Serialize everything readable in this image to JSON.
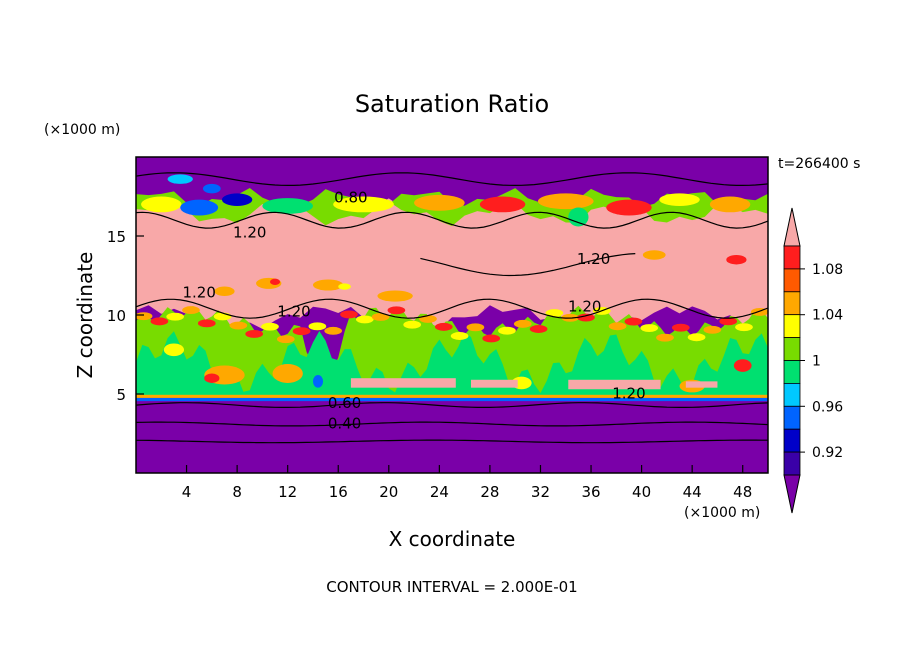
{
  "chart_data": {
    "type": "heatmap",
    "title": "Saturation Ratio",
    "xlabel": "X coordinate",
    "ylabel": "Z coordinate",
    "x_unit": "(×1000 m)",
    "y_unit": "(×1000 m)",
    "time_label": "t=266400 s",
    "footer": "CONTOUR INTERVAL = 2.000E-01",
    "xlim": [
      0,
      50
    ],
    "ylim": [
      0,
      20
    ],
    "x_ticks": [
      4,
      8,
      12,
      16,
      20,
      24,
      28,
      32,
      36,
      40,
      44,
      48
    ],
    "y_ticks": [
      5,
      10,
      15
    ],
    "grid": false,
    "legend": {
      "placement": "right",
      "type": "colorbar",
      "levels": [
        0.92,
        0.96,
        1,
        1.04,
        1.08
      ],
      "colors": [
        "#7a00a8",
        "#3a00a8",
        "#0000c8",
        "#0064ff",
        "#00c8ff",
        "#00e070",
        "#78dc00",
        "#ffff00",
        "#ffa800",
        "#ff5a00",
        "#ff1e1e",
        "#f8a8a8"
      ]
    },
    "contour_labels": [
      {
        "x": 17,
        "z": 17.4,
        "text": "0.80"
      },
      {
        "x": 9,
        "z": 15.2,
        "text": "1.20"
      },
      {
        "x": 5,
        "z": 11.4,
        "text": "1.20"
      },
      {
        "x": 12.5,
        "z": 10.2,
        "text": "1.20"
      },
      {
        "x": 36.2,
        "z": 13.5,
        "text": "1.20"
      },
      {
        "x": 35.5,
        "z": 10.5,
        "text": "1.20"
      },
      {
        "x": 39,
        "z": 5,
        "text": "1.20"
      },
      {
        "x": 16.5,
        "z": 4.4,
        "text": "0.60"
      },
      {
        "x": 16.5,
        "z": 3.1,
        "text": "0.40"
      }
    ]
  }
}
